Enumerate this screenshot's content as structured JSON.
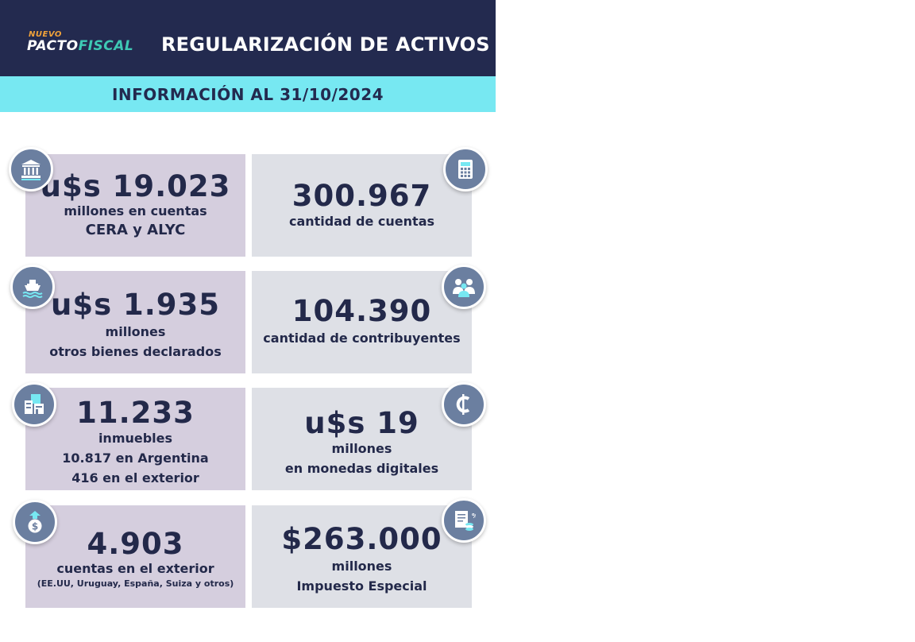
{
  "header": {
    "logo": {
      "top": "NUEVO",
      "word1": "PACTO",
      "word2": "FISCAL"
    },
    "title": "REGULARIZACIÓN DE ACTIVOS"
  },
  "subheader": "INFORMACIÓN AL 31/10/2024",
  "cards": [
    {
      "value": "u$s 19.023",
      "lines": [
        "millones en cuentas",
        "CERA y ALYC"
      ],
      "icon": "bank-icon"
    },
    {
      "value": "300.967",
      "lines": [
        "cantidad de cuentas"
      ],
      "icon": "calculator-icon"
    },
    {
      "value": "u$s 1.935",
      "lines": [
        "millones",
        "otros bienes declarados"
      ],
      "icon": "boat-icon"
    },
    {
      "value": "104.390",
      "lines": [
        "cantidad de contribuyentes"
      ],
      "icon": "people-icon"
    },
    {
      "value": "11.233",
      "lines": [
        "inmuebles",
        "10.817 en Argentina",
        "416 en el exterior"
      ],
      "icon": "buildings-icon"
    },
    {
      "value": "u$s 19",
      "lines": [
        "millones",
        "en monedas digitales"
      ],
      "icon": "cryptocurrency-icon"
    },
    {
      "value": "4.903",
      "lines": [
        "cuentas en el exterior"
      ],
      "note": "(EE.UU, Uruguay, España, Suiza y otros)",
      "icon": "money-bag-icon"
    },
    {
      "value": "$263.000",
      "lines": [
        "millones",
        "Impuesto Especial"
      ],
      "icon": "tax-document-icon"
    }
  ],
  "colors": {
    "header_bg": "#232a4f",
    "subheader_bg": "#77e8f2",
    "card_left_bg": "#d5cede",
    "card_right_bg": "#dee0e6",
    "badge_bg": "#6b7fa0",
    "logo_orange": "#f0a23a",
    "logo_teal": "#3ec9b4"
  }
}
